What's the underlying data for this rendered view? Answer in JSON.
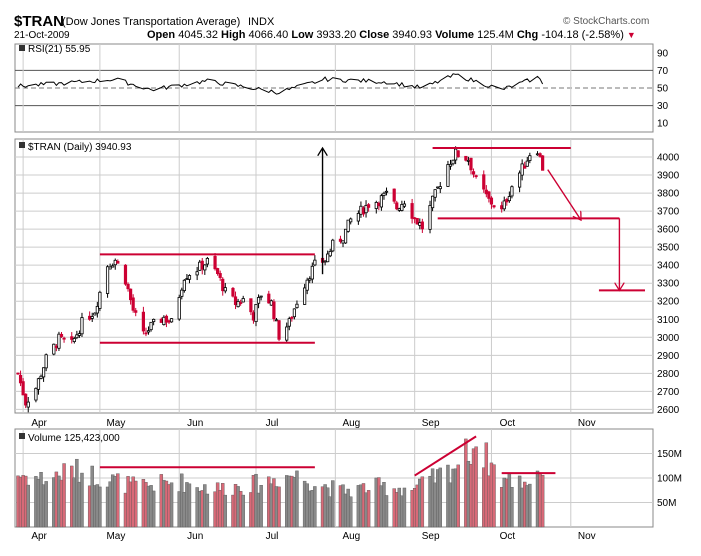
{
  "header": {
    "symbol": "$TRAN",
    "name": "(Dow Jones Transportation Average)",
    "exchange": "INDX",
    "date": "21-Oct-2009",
    "open_label": "Open",
    "open": "4045.32",
    "high_label": "High",
    "high": "4066.40",
    "low_label": "Low",
    "low": "3933.20",
    "close_label": "Close",
    "close": "3940.93",
    "volume_label": "Volume",
    "volume": "125.4M",
    "chg_label": "Chg",
    "chg": "-104.18 (-2.58%)",
    "chg_arrow": "▼",
    "logo": "© StockCharts.com"
  },
  "rsi_panel": {
    "label": "RSI(21) 55.95",
    "ticks": [
      "90",
      "70",
      "50",
      "30",
      "10"
    ],
    "tick_values": [
      90,
      70,
      50,
      30,
      10
    ],
    "ylim": [
      0,
      100
    ],
    "lines": [
      70,
      30
    ]
  },
  "price_panel": {
    "label": "$TRAN (Daily) 3940.93",
    "ticks": [
      "4000",
      "3900",
      "3800",
      "3700",
      "3600",
      "3500",
      "3400",
      "3300",
      "3200",
      "3100",
      "3000",
      "2900",
      "2800",
      "2700",
      "2600"
    ]
  },
  "volume_panel": {
    "label": "Volume 125,423,000",
    "ticks": [
      "150M",
      "100M",
      "50M"
    ]
  },
  "x_axis": {
    "months": [
      "Apr",
      "May",
      "Jun",
      "Jul",
      "Aug",
      "Sep",
      "Oct",
      "Nov"
    ]
  },
  "colors": {
    "up": "#000000",
    "down": "#cc0033",
    "annotation": "#cc0033",
    "vol_up": "#8a8a8a",
    "vol_down": "#d96a78",
    "grid": "#cccccc"
  },
  "chart_data": {
    "type": "candlestick",
    "symbol": "$TRAN",
    "period": "daily",
    "x_range": [
      "2009-03-30",
      "2009-11-30"
    ],
    "price_ylim": [
      2580,
      4100
    ],
    "volume_ylim": [
      0,
      200
    ],
    "volume_unit": "M",
    "rsi_ylim": [
      0,
      100
    ],
    "close_points": [
      [
        "2009-03-30",
        2800
      ],
      [
        "2009-04-02",
        2640
      ],
      [
        "2009-04-06",
        2720
      ],
      [
        "2009-04-10",
        2880
      ],
      [
        "2009-04-15",
        2990
      ],
      [
        "2009-04-20",
        2960
      ],
      [
        "2009-04-24",
        3080
      ],
      [
        "2009-04-29",
        3150
      ],
      [
        "2009-05-04",
        3400
      ],
      [
        "2009-05-07",
        3430
      ],
      [
        "2009-05-11",
        3320
      ],
      [
        "2009-05-14",
        3150
      ],
      [
        "2009-05-18",
        3010
      ],
      [
        "2009-05-21",
        3060
      ],
      [
        "2009-05-26",
        3110
      ],
      [
        "2009-05-29",
        3080
      ],
      [
        "2009-06-03",
        3340
      ],
      [
        "2009-06-08",
        3380
      ],
      [
        "2009-06-12",
        3420
      ],
      [
        "2009-06-16",
        3350
      ],
      [
        "2009-06-19",
        3250
      ],
      [
        "2009-06-23",
        3190
      ],
      [
        "2009-06-26",
        3210
      ],
      [
        "2009-06-30",
        3120
      ],
      [
        "2009-07-03",
        3240
      ],
      [
        "2009-07-07",
        3190
      ],
      [
        "2009-07-10",
        3010
      ],
      [
        "2009-07-14",
        3080
      ],
      [
        "2009-07-17",
        3200
      ],
      [
        "2009-07-21",
        3330
      ],
      [
        "2009-07-24",
        3400
      ],
      [
        "2009-07-28",
        3430
      ],
      [
        "2009-07-31",
        3510
      ],
      [
        "2009-08-04",
        3560
      ],
      [
        "2009-08-07",
        3650
      ],
      [
        "2009-08-11",
        3700
      ],
      [
        "2009-08-14",
        3740
      ],
      [
        "2009-08-18",
        3760
      ],
      [
        "2009-08-21",
        3790
      ],
      [
        "2009-08-25",
        3720
      ],
      [
        "2009-08-28",
        3760
      ],
      [
        "2009-09-01",
        3660
      ],
      [
        "2009-09-04",
        3610
      ],
      [
        "2009-09-09",
        3790
      ],
      [
        "2009-09-14",
        3960
      ],
      [
        "2009-09-17",
        4020
      ],
      [
        "2009-09-22",
        3990
      ],
      [
        "2009-09-25",
        3870
      ],
      [
        "2009-09-30",
        3760
      ],
      [
        "2009-10-05",
        3700
      ],
      [
        "2009-10-09",
        3840
      ],
      [
        "2009-10-14",
        3960
      ],
      [
        "2009-10-16",
        4020
      ],
      [
        "2009-10-19",
        4045
      ],
      [
        "2009-10-21",
        3941
      ]
    ],
    "rsi_points": [
      [
        "2009-03-30",
        52
      ],
      [
        "2009-04-15",
        55
      ],
      [
        "2009-05-07",
        60
      ],
      [
        "2009-05-21",
        48
      ],
      [
        "2009-06-12",
        58
      ],
      [
        "2009-07-10",
        45
      ],
      [
        "2009-07-28",
        60
      ],
      [
        "2009-08-21",
        57
      ],
      [
        "2009-09-04",
        50
      ],
      [
        "2009-09-17",
        65
      ],
      [
        "2009-10-05",
        48
      ],
      [
        "2009-10-19",
        62
      ],
      [
        "2009-10-21",
        56
      ]
    ],
    "volume_points": [
      [
        "2009-03-30",
        110
      ],
      [
        "2009-04-10",
        100
      ],
      [
        "2009-04-20",
        120
      ],
      [
        "2009-05-01",
        105
      ],
      [
        "2009-05-15",
        85
      ],
      [
        "2009-06-01",
        95
      ],
      [
        "2009-06-15",
        80
      ],
      [
        "2009-07-01",
        90
      ],
      [
        "2009-07-15",
        110
      ],
      [
        "2009-08-03",
        75
      ],
      [
        "2009-08-17",
        85
      ],
      [
        "2009-09-01",
        80
      ],
      [
        "2009-09-15",
        120
      ],
      [
        "2009-09-25",
        175
      ],
      [
        "2009-10-05",
        100
      ],
      [
        "2009-10-15",
        95
      ],
      [
        "2009-10-21",
        125
      ]
    ],
    "annotations": [
      {
        "kind": "line",
        "x": [
          "2009-05-01",
          "2009-07-24"
        ],
        "y": [
          3460,
          3460
        ]
      },
      {
        "kind": "line",
        "x": [
          "2009-05-01",
          "2009-07-24"
        ],
        "y": [
          2970,
          2970
        ]
      },
      {
        "kind": "arrow",
        "x": [
          "2009-07-27",
          "2009-07-27"
        ],
        "y": [
          3350,
          4050
        ]
      },
      {
        "kind": "line",
        "x": [
          "2009-09-08",
          "2009-11-01"
        ],
        "y": [
          4050,
          4050
        ]
      },
      {
        "kind": "line",
        "x": [
          "2009-09-10",
          "2009-11-20"
        ],
        "y": [
          3660,
          3660
        ]
      },
      {
        "kind": "arrow",
        "x": [
          "2009-10-23",
          "2009-11-05"
        ],
        "y": [
          3930,
          3650
        ]
      },
      {
        "kind": "arrow",
        "x": [
          "2009-11-20",
          "2009-11-20"
        ],
        "y": [
          3660,
          3260
        ]
      },
      {
        "kind": "line",
        "x": [
          "2009-11-12",
          "2009-11-30"
        ],
        "y": [
          3260,
          3260
        ]
      }
    ]
  }
}
